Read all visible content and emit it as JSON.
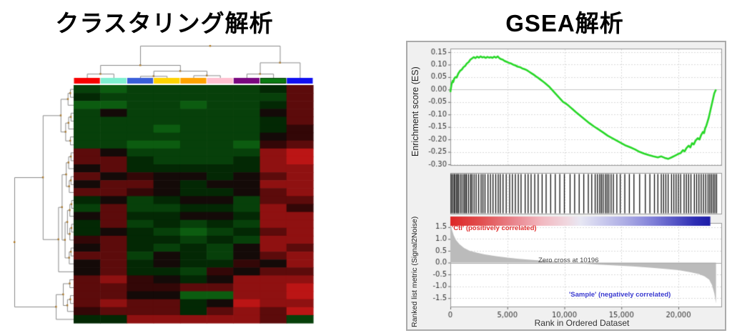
{
  "chart_data": [
    {
      "type": "heatmap",
      "title": "クラスタリング解析",
      "n_rows": 30,
      "n_cols": 9,
      "column_band_colors": [
        "#f80000",
        "#7ff0d0",
        "#3a5fd9",
        "#ffd200",
        "#ffa200",
        "#ffc0d0",
        "#7a0880",
        "#0a7a12",
        "#1010f0"
      ],
      "column_band_names": [
        "red",
        "aquamarine",
        "royal-blue",
        "gold",
        "orange",
        "pink",
        "purple",
        "green",
        "blue"
      ],
      "value_palette": {
        "g4": "#0f7a14",
        "g3": "#0c5c10",
        "g2": "#07400a",
        "g1": "#032804",
        "k": "#140a08",
        "r1": "#330707",
        "r2": "#5c0b0b",
        "r3": "#8f1111",
        "r4": "#bb1515",
        "r5": "#d81a12"
      },
      "cells": [
        [
          "g2",
          "g3",
          "g2",
          "g2",
          "g2",
          "g2",
          "g2",
          "g1",
          "r2"
        ],
        [
          "g1",
          "g2",
          "g2",
          "g2",
          "g2",
          "g2",
          "g2",
          "g2",
          "r2"
        ],
        [
          "g3",
          "g3",
          "g2",
          "g2",
          "g3",
          "g2",
          "g2",
          "g1",
          "r2"
        ],
        [
          "g2",
          "k",
          "g2",
          "g2",
          "g2",
          "g2",
          "g2",
          "k",
          "r2"
        ],
        [
          "g2",
          "g2",
          "g2",
          "g2",
          "g2",
          "g2",
          "g2",
          "g1",
          "r2"
        ],
        [
          "g2",
          "g2",
          "g2",
          "g3",
          "g2",
          "g2",
          "g2",
          "g1",
          "r1"
        ],
        [
          "g2",
          "g2",
          "g2",
          "g2",
          "g2",
          "g2",
          "g2",
          "k",
          "r1"
        ],
        [
          "g2",
          "g2",
          "g3",
          "g3",
          "g2",
          "g2",
          "g3",
          "r1",
          "r2"
        ],
        [
          "r2",
          "k",
          "g2",
          "g2",
          "g2",
          "g2",
          "g2",
          "r3",
          "r4"
        ],
        [
          "r2",
          "r2",
          "g1",
          "g2",
          "g2",
          "g2",
          "g1",
          "r3",
          "r4"
        ],
        [
          "k",
          "r2",
          "g1",
          "g1",
          "g1",
          "g1",
          "g1",
          "r3",
          "r3"
        ],
        [
          "r2",
          "k",
          "r1",
          "k",
          "k",
          "g1",
          "k",
          "r2",
          "r3"
        ],
        [
          "k",
          "r2",
          "r2",
          "k",
          "g1",
          "k",
          "k",
          "r3",
          "r3"
        ],
        [
          "r2",
          "r2",
          "r1",
          "k",
          "g1",
          "g1",
          "k",
          "r2",
          "r3"
        ],
        [
          "g1",
          "k",
          "g2",
          "g1",
          "k",
          "k",
          "g2",
          "r2",
          "r2"
        ],
        [
          "g2",
          "r2",
          "g2",
          "g2",
          "g1",
          "g1",
          "g2",
          "r3",
          "r1"
        ],
        [
          "k",
          "r2",
          "g1",
          "g1",
          "k",
          "k",
          "g1",
          "r3",
          "r3"
        ],
        [
          "g1",
          "r2",
          "g2",
          "g1",
          "g2",
          "g1",
          "g2",
          "r3",
          "r3"
        ],
        [
          "g1",
          "k",
          "g1",
          "g2",
          "g3",
          "g2",
          "g1",
          "r2",
          "r3"
        ],
        [
          "r1",
          "r2",
          "g1",
          "g1",
          "g2",
          "g1",
          "g2",
          "r3",
          "r3"
        ],
        [
          "k",
          "r2",
          "g1",
          "g2",
          "g1",
          "g2",
          "k",
          "r3",
          "r2"
        ],
        [
          "r2",
          "r2",
          "g2",
          "k",
          "g1",
          "g2",
          "k",
          "r2",
          "r3"
        ],
        [
          "k",
          "r2",
          "g1",
          "k",
          "g1",
          "g1",
          "r1",
          "k",
          "r3"
        ],
        [
          "k",
          "r2",
          "g1",
          "g1",
          "g2",
          "r1",
          "k",
          "r2",
          "r2"
        ],
        [
          "r2",
          "r3",
          "r1",
          "k",
          "g1",
          "k",
          "r3",
          "r3",
          "r3"
        ],
        [
          "r2",
          "r2",
          "r1",
          "r1",
          "r2",
          "r2",
          "r3",
          "r3",
          "r4"
        ],
        [
          "r2",
          "r2",
          "k",
          "k",
          "g3",
          "g3",
          "r3",
          "r3",
          "r4"
        ],
        [
          "r2",
          "r3",
          "r2",
          "r2",
          "g1",
          "k",
          "r4",
          "r3",
          "r3"
        ],
        [
          "r1",
          "r2",
          "r2",
          "r2",
          "g1",
          "r2",
          "r3",
          "r2",
          "r4"
        ],
        [
          "g1",
          "g1",
          "r3",
          "r3",
          "r3",
          "r3",
          "r3",
          "r2",
          "g2"
        ]
      ],
      "col_dendrogram_merges": [
        [
          "L0",
          "L1",
          0.13
        ],
        [
          "L2",
          "L3",
          0.06
        ],
        [
          "L4",
          "L5",
          0.08
        ],
        [
          "M1",
          "M2",
          0.22
        ],
        [
          "M0",
          "M3",
          0.4
        ],
        [
          "L6",
          "L7",
          0.13
        ],
        [
          "M5",
          "L8",
          0.48
        ],
        [
          "M4",
          "M6",
          1.0
        ]
      ],
      "row_dendrogram_merges": [
        [
          "L0",
          "L1",
          0.06
        ],
        [
          "M0",
          "L2",
          0.1
        ],
        [
          "L3",
          "L4",
          0.05
        ],
        [
          "M2",
          "L5",
          0.09
        ],
        [
          "L6",
          "L7",
          0.06
        ],
        [
          "M3",
          "M4",
          0.14
        ],
        [
          "M1",
          "M5",
          0.22
        ],
        [
          "L8",
          "L9",
          0.05
        ],
        [
          "M7",
          "L10",
          0.09
        ],
        [
          "L11",
          "L12",
          0.05
        ],
        [
          "M9",
          "L13",
          0.08
        ],
        [
          "M8",
          "M10",
          0.13
        ],
        [
          "L14",
          "L15",
          0.04
        ],
        [
          "M12",
          "L16",
          0.07
        ],
        [
          "L17",
          "L18",
          0.04
        ],
        [
          "M14",
          "L19",
          0.07
        ],
        [
          "M13",
          "M15",
          0.11
        ],
        [
          "L20",
          "L21",
          0.05
        ],
        [
          "M17",
          "L22",
          0.08
        ],
        [
          "M16",
          "M18",
          0.15
        ],
        [
          "M11",
          "M19",
          0.2
        ],
        [
          "M20",
          "L23",
          0.26
        ],
        [
          "M6",
          "M21",
          0.52
        ],
        [
          "L24",
          "L25",
          0.07
        ],
        [
          "L26",
          "L27",
          0.06
        ],
        [
          "M24",
          "L28",
          0.11
        ],
        [
          "M23",
          "M25",
          0.18
        ],
        [
          "M26",
          "L29",
          0.3
        ],
        [
          "M22",
          "M27",
          1.0
        ]
      ],
      "dendrogram_line_color": "#8a8a8a",
      "dendrogram_node_color": "#b07820"
    },
    {
      "type": "gsea",
      "title": "GSEA解析",
      "es_ylabel": "Enrichment score (ES)",
      "metric_ylabel": "Ranked list metric (Signal2Noise)",
      "xlabel": "Rank in Ordered Dataset",
      "pos_label": "'Ctl' (positively correlated)",
      "neg_label": "'Sample' (negatively correlated)",
      "zero_cross_label": "Zero cross at 10196",
      "zero_cross_rank": 10196,
      "es_yticks": [
        "0.15",
        "0.10",
        "0.05",
        "0.00",
        "-0.05",
        "-0.10",
        "-0.15",
        "-0.20",
        "-0.25",
        "-0.30"
      ],
      "es_ytick_values": [
        0.15,
        0.1,
        0.05,
        0.0,
        -0.05,
        -0.1,
        -0.15,
        -0.2,
        -0.25,
        -0.3
      ],
      "metric_yticks": [
        "1.5",
        "1.0",
        "0.5",
        "0.0",
        "-0.5",
        "-1.0",
        "-1.5"
      ],
      "metric_ytick_values": [
        1.5,
        1.0,
        0.5,
        0.0,
        -0.5,
        -1.0,
        -1.5
      ],
      "xticks": [
        0,
        5000,
        10000,
        15000,
        20000
      ],
      "xtick_labels": [
        "0",
        "5,000",
        "10,000",
        "15,000",
        "20,000"
      ],
      "x_max": 23824,
      "es_color": "#28d828",
      "hit_color": "#111111",
      "area_color": "#bbbbbb",
      "pos_color": "#e03030",
      "neg_color": "#3a3ad0",
      "es_curve": [
        [
          0,
          -0.01
        ],
        [
          100,
          0.02
        ],
        [
          200,
          0.035
        ],
        [
          250,
          0.03
        ],
        [
          350,
          0.045
        ],
        [
          450,
          0.05
        ],
        [
          550,
          0.048
        ],
        [
          700,
          0.065
        ],
        [
          850,
          0.075
        ],
        [
          1000,
          0.08
        ],
        [
          1150,
          0.09
        ],
        [
          1300,
          0.095
        ],
        [
          1450,
          0.105
        ],
        [
          1600,
          0.11
        ],
        [
          1750,
          0.12
        ],
        [
          1900,
          0.125
        ],
        [
          2050,
          0.13
        ],
        [
          2200,
          0.126
        ],
        [
          2350,
          0.132
        ],
        [
          2500,
          0.128
        ],
        [
          2650,
          0.133
        ],
        [
          2800,
          0.129
        ],
        [
          2950,
          0.131
        ],
        [
          3100,
          0.127
        ],
        [
          3250,
          0.131
        ],
        [
          3400,
          0.128
        ],
        [
          3550,
          0.13
        ],
        [
          3700,
          0.127
        ],
        [
          3850,
          0.132
        ],
        [
          4000,
          0.128
        ],
        [
          4150,
          0.133
        ],
        [
          4300,
          0.126
        ],
        [
          4450,
          0.122
        ],
        [
          4600,
          0.12
        ],
        [
          4750,
          0.115
        ],
        [
          4900,
          0.112
        ],
        [
          5100,
          0.108
        ],
        [
          5300,
          0.105
        ],
        [
          5500,
          0.1
        ],
        [
          5700,
          0.097
        ],
        [
          5900,
          0.092
        ],
        [
          6100,
          0.09
        ],
        [
          6300,
          0.085
        ],
        [
          6500,
          0.082
        ],
        [
          6700,
          0.078
        ],
        [
          6900,
          0.072
        ],
        [
          7100,
          0.066
        ],
        [
          7300,
          0.06
        ],
        [
          7500,
          0.053
        ],
        [
          7700,
          0.047
        ],
        [
          7900,
          0.04
        ],
        [
          8100,
          0.033
        ],
        [
          8300,
          0.026
        ],
        [
          8500,
          0.018
        ],
        [
          8700,
          0.01
        ],
        [
          8900,
          0.0
        ],
        [
          9100,
          -0.01
        ],
        [
          9300,
          -0.02
        ],
        [
          9500,
          -0.03
        ],
        [
          9700,
          -0.04
        ],
        [
          9900,
          -0.05
        ],
        [
          10100,
          -0.055
        ],
        [
          10400,
          -0.066
        ],
        [
          10700,
          -0.078
        ],
        [
          11000,
          -0.09
        ],
        [
          11400,
          -0.105
        ],
        [
          11800,
          -0.12
        ],
        [
          12200,
          -0.135
        ],
        [
          12600,
          -0.148
        ],
        [
          13000,
          -0.16
        ],
        [
          13400,
          -0.172
        ],
        [
          13800,
          -0.185
        ],
        [
          14200,
          -0.195
        ],
        [
          14600,
          -0.205
        ],
        [
          15000,
          -0.215
        ],
        [
          15400,
          -0.225
        ],
        [
          15800,
          -0.232
        ],
        [
          16200,
          -0.24
        ],
        [
          16600,
          -0.25
        ],
        [
          17000,
          -0.257
        ],
        [
          17400,
          -0.263
        ],
        [
          17800,
          -0.268
        ],
        [
          18200,
          -0.272
        ],
        [
          18500,
          -0.268
        ],
        [
          18800,
          -0.274
        ],
        [
          19100,
          -0.278
        ],
        [
          19400,
          -0.272
        ],
        [
          19700,
          -0.265
        ],
        [
          20000,
          -0.258
        ],
        [
          20200,
          -0.255
        ],
        [
          20400,
          -0.243
        ],
        [
          20550,
          -0.248
        ],
        [
          20700,
          -0.235
        ],
        [
          20900,
          -0.225
        ],
        [
          21050,
          -0.232
        ],
        [
          21200,
          -0.215
        ],
        [
          21350,
          -0.22
        ],
        [
          21500,
          -0.205
        ],
        [
          21700,
          -0.195
        ],
        [
          21850,
          -0.2
        ],
        [
          22000,
          -0.182
        ],
        [
          22150,
          -0.17
        ],
        [
          22250,
          -0.175
        ],
        [
          22350,
          -0.155
        ],
        [
          22450,
          -0.145
        ],
        [
          22550,
          -0.13
        ],
        [
          22650,
          -0.115
        ],
        [
          22750,
          -0.095
        ],
        [
          22850,
          -0.075
        ],
        [
          22950,
          -0.055
        ],
        [
          23050,
          -0.035
        ],
        [
          23150,
          -0.015
        ],
        [
          23300,
          0.0
        ]
      ],
      "hit_ranks": [
        60,
        180,
        320,
        380,
        520,
        640,
        700,
        860,
        1020,
        1180,
        1300,
        1420,
        1600,
        1780,
        1900,
        2080,
        2260,
        2480,
        2700,
        2860,
        3040,
        3300,
        3520,
        3740,
        3980,
        4200,
        4380,
        4620,
        4900,
        5200,
        5440,
        5700,
        5960,
        6200,
        6560,
        6820,
        7080,
        7400,
        7700,
        8050,
        8400,
        8800,
        9200,
        9600,
        10000,
        10500,
        10900,
        11300,
        11700,
        12100,
        12400,
        12700,
        12900,
        13100,
        13250,
        13400,
        13600,
        13750,
        13900,
        14100,
        14300,
        14600,
        14900,
        15300,
        15700,
        16100,
        16600,
        17100,
        17500,
        17900,
        18200,
        18500,
        18700,
        18900,
        19100,
        19400,
        19600,
        19800,
        20000,
        20200,
        20500,
        20700,
        20900,
        21100,
        21400,
        21600,
        21800,
        22000,
        22200,
        22400,
        22600,
        22750,
        22900,
        23050,
        23200,
        23350
      ],
      "gradient_stops": [
        [
          0.0,
          "#dd2626"
        ],
        [
          0.12,
          "#e25050"
        ],
        [
          0.25,
          "#ea8890"
        ],
        [
          0.35,
          "#f2b8c0"
        ],
        [
          0.45,
          "#f0d8e0"
        ],
        [
          0.5,
          "#e8e8f4"
        ],
        [
          0.58,
          "#ccccee"
        ],
        [
          0.68,
          "#aaaae4"
        ],
        [
          0.78,
          "#7f7fd8"
        ],
        [
          0.87,
          "#5252c4"
        ],
        [
          0.94,
          "#2e2eb4"
        ],
        [
          1.0,
          "#1d1da8"
        ]
      ],
      "gradient_max_rank": 22800,
      "ranked_metric": [
        [
          0,
          1.68
        ],
        [
          100,
          1.45
        ],
        [
          300,
          1.15
        ],
        [
          500,
          0.95
        ],
        [
          800,
          0.78
        ],
        [
          1200,
          0.62
        ],
        [
          1700,
          0.5
        ],
        [
          2300,
          0.42
        ],
        [
          3000,
          0.35
        ],
        [
          4000,
          0.27
        ],
        [
          5000,
          0.21
        ],
        [
          6000,
          0.16
        ],
        [
          7000,
          0.12
        ],
        [
          8000,
          0.08
        ],
        [
          9000,
          0.05
        ],
        [
          10196,
          0.0
        ],
        [
          11500,
          -0.04
        ],
        [
          13000,
          -0.08
        ],
        [
          14500,
          -0.12
        ],
        [
          16000,
          -0.16
        ],
        [
          17500,
          -0.21
        ],
        [
          19000,
          -0.27
        ],
        [
          20000,
          -0.32
        ],
        [
          21000,
          -0.4
        ],
        [
          21800,
          -0.48
        ],
        [
          22300,
          -0.58
        ],
        [
          22700,
          -0.72
        ],
        [
          22950,
          -0.95
        ],
        [
          23150,
          -1.3
        ],
        [
          23300,
          -1.72
        ]
      ]
    }
  ]
}
